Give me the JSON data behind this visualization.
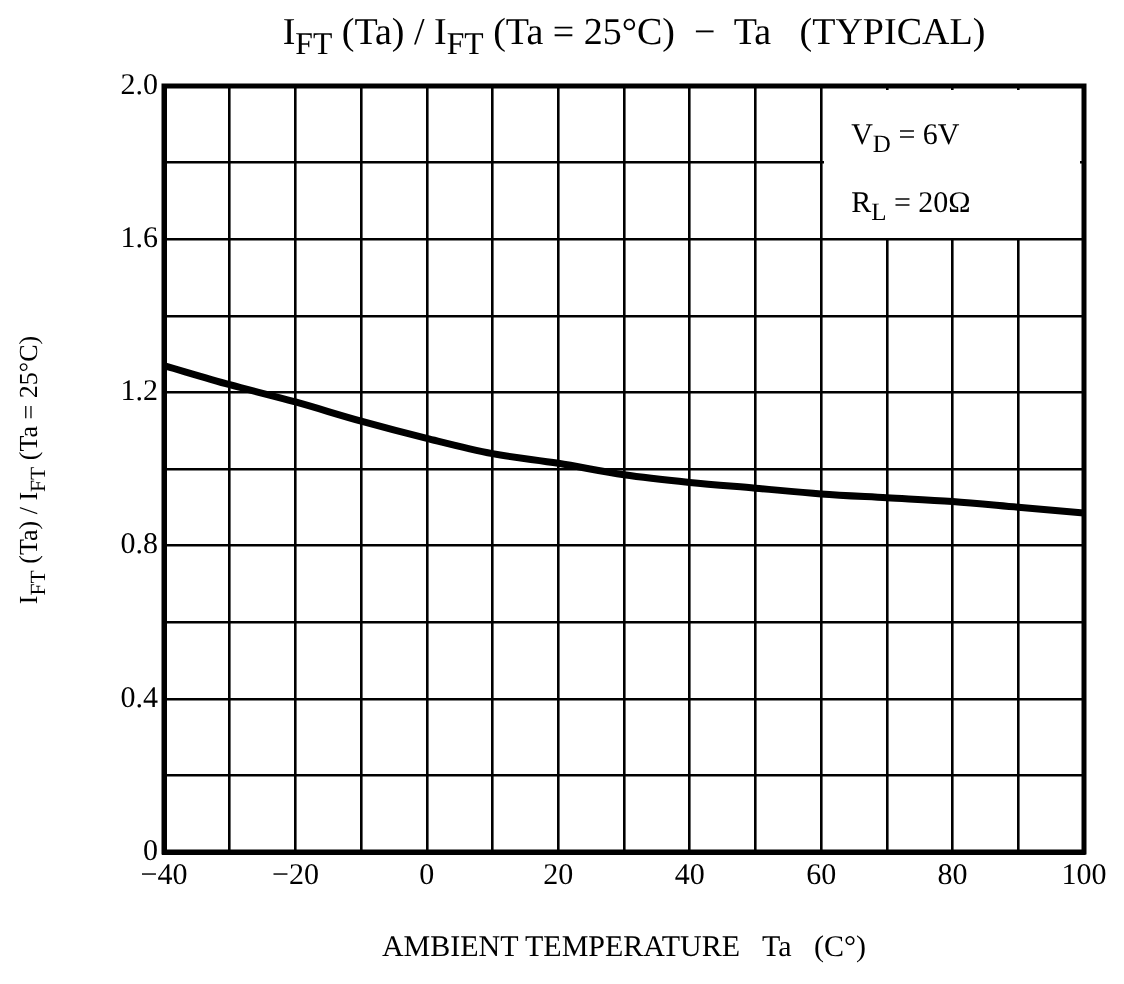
{
  "chart_data": {
    "type": "line",
    "title": "I$_{FT}$ (Ta) / I$_{FT}$ (Ta = 25°C)  −  Ta   (TYPICAL)",
    "xlabel": "AMBIENT TEMPERATURE   Ta   (C°)",
    "ylabel": "I$_{FT}$ (Ta) / I$_{FT}$ (Ta = 25°C)",
    "annotations": [
      "V$_{D}$ = 6V",
      "R$_{L}$ = 20Ω"
    ],
    "x": [
      -40,
      -30,
      -20,
      -10,
      0,
      10,
      20,
      30,
      40,
      50,
      60,
      70,
      80,
      90,
      100
    ],
    "series": [
      {
        "color": "#000000",
        "values": [
          1.27,
          1.22,
          1.175,
          1.125,
          1.08,
          1.04,
          1.015,
          0.985,
          0.965,
          0.95,
          0.935,
          0.925,
          0.915,
          0.9,
          0.885
        ]
      }
    ],
    "xlim": [
      -40,
      100
    ],
    "xticks": [
      {
        "value": -40,
        "label": "−40"
      },
      {
        "value": -30,
        "label": null
      },
      {
        "value": -20,
        "label": "−20"
      },
      {
        "value": -10,
        "label": null
      },
      0,
      {
        "value": 10,
        "label": null
      },
      20,
      {
        "value": 30,
        "label": null
      },
      40,
      {
        "value": 50,
        "label": null
      },
      60,
      {
        "value": 70,
        "label": null
      },
      80,
      {
        "value": 90,
        "label": null
      },
      100
    ],
    "ylim": [
      0,
      2.0
    ],
    "yticks": [
      0,
      {
        "value": 0.2,
        "label": null
      },
      0.4,
      {
        "value": 0.6,
        "label": null
      },
      0.8,
      {
        "value": 1.0,
        "label": null
      },
      1.2,
      {
        "value": 1.4,
        "label": null
      },
      1.6,
      {
        "value": 1.8,
        "label": null
      },
      {
        "value": 2.0,
        "label": "2.0"
      }
    ],
    "grid": true,
    "marker": "none",
    "line_style": "solid"
  }
}
